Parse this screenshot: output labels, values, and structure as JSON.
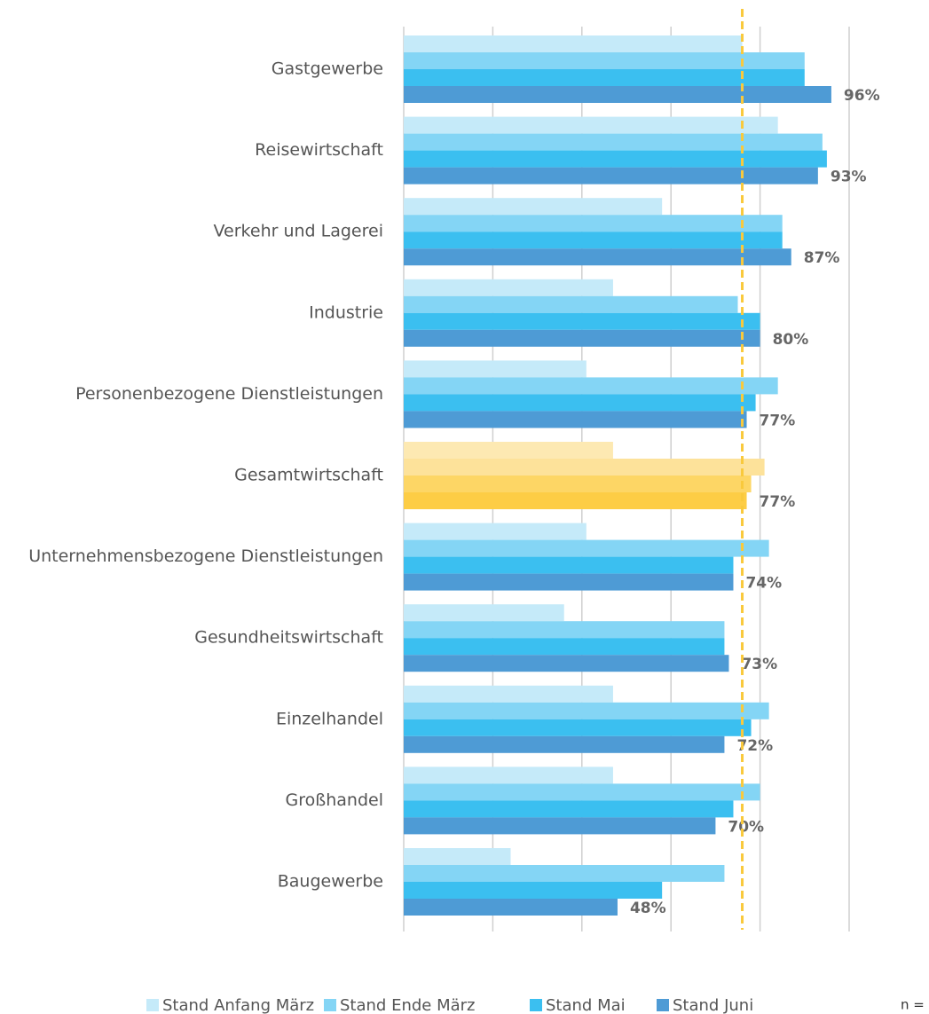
{
  "chart_data": {
    "type": "bar",
    "orientation": "horizontal",
    "categories": [
      "Gastgewerbe",
      "Reisewirtschaft",
      "Verkehr und Lagerei",
      "Industrie",
      "Personenbezogene Dienstleistungen",
      "Gesamtwirtschaft",
      "Unternehmensbezogene Dienstleistungen",
      "Gesundheitswirtschaft",
      "Einzelhandel",
      "Großhandel",
      "Baugewerbe"
    ],
    "series": [
      {
        "name": "Stand Anfang März",
        "color": "#c5eaf9",
        "highlight_color": "#fde9b2",
        "values": [
          76,
          84,
          58,
          47,
          41,
          47,
          41,
          36,
          47,
          47,
          24
        ]
      },
      {
        "name": "Stand Ende März",
        "color": "#84d5f5",
        "highlight_color": "#fde29a",
        "values": [
          90,
          94,
          85,
          75,
          84,
          81,
          82,
          72,
          82,
          80,
          72
        ]
      },
      {
        "name": "Stand Mai",
        "color": "#3bbff0",
        "highlight_color": "#fdd665",
        "values": [
          90,
          95,
          85,
          80,
          79,
          78,
          74,
          72,
          78,
          74,
          58
        ]
      },
      {
        "name": "Stand Juni",
        "color": "#4e9bd5",
        "highlight_color": "#fdcd45",
        "values": [
          96,
          93,
          87,
          80,
          77,
          77,
          74,
          73,
          72,
          70,
          48
        ],
        "value_labels": [
          "96%",
          "93%",
          "87%",
          "80%",
          "77%",
          "77%",
          "74%",
          "73%",
          "72%",
          "70%",
          "48%"
        ]
      }
    ],
    "highlight_category": "Gesamtwirtschaft",
    "xlim": [
      0,
      100
    ],
    "xticks": [
      0,
      20,
      40,
      60,
      80,
      100
    ],
    "grid": true,
    "reference_line": {
      "value": 76,
      "color": "#f9c93c"
    },
    "footnote": "n =",
    "legend": "bottom"
  }
}
